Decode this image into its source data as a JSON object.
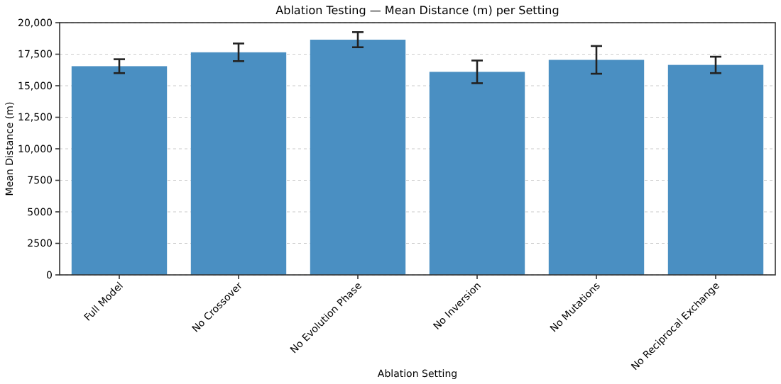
{
  "chart_data": {
    "type": "bar",
    "title": "Ablation Testing — Mean Distance (m) per Setting",
    "xlabel": "Ablation Setting",
    "ylabel": "Mean Distance (m)",
    "categories": [
      "Full Model",
      "No Crossover",
      "No Evolution Phase",
      "No Inversion",
      "No Mutations",
      "No Reciprocal Exchange"
    ],
    "values": [
      16550,
      17650,
      18650,
      16100,
      17050,
      16650
    ],
    "errors": [
      550,
      700,
      600,
      900,
      1100,
      650
    ],
    "color": "#4a8fc2",
    "ylim": [
      0,
      20000
    ],
    "yticks": [
      0,
      {
        "value": 2500,
        "label": "2500"
      },
      {
        "value": 5000,
        "label": "5000"
      },
      {
        "value": 7500,
        "label": "7500"
      },
      {
        "value": 10000,
        "label": "10,000"
      },
      {
        "value": 12500,
        "label": "12,500"
      },
      {
        "value": 15000,
        "label": "15,000"
      },
      {
        "value": 17500,
        "label": "17,500"
      },
      {
        "value": 20000,
        "label": "20,000"
      }
    ],
    "grid": "y"
  }
}
